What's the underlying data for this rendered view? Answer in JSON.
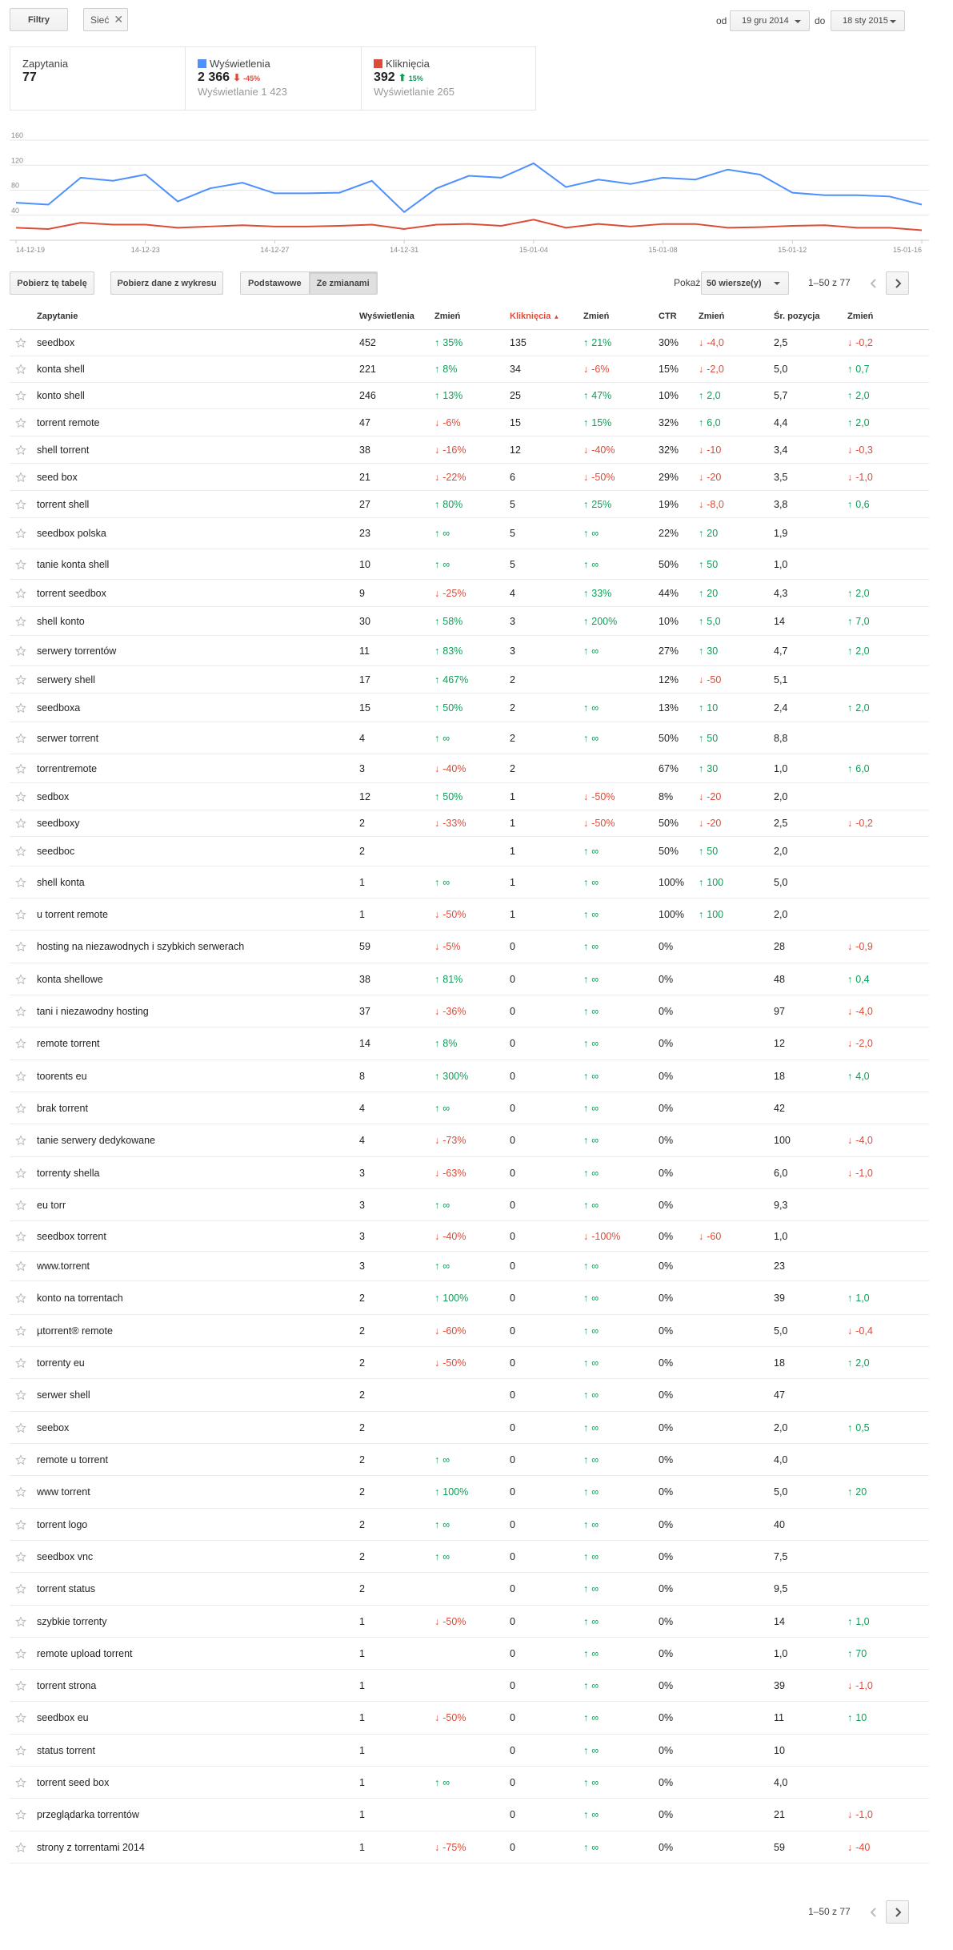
{
  "toolbar": {
    "filters_label": "Filtry",
    "chip_label": "Sieć",
    "from_label": "od",
    "from_date": "19 gru 2014",
    "to_label": "do",
    "to_date": "18 sty 2015"
  },
  "summary": {
    "queries_label": "Zapytania",
    "queries_value": "77",
    "impressions_label": "Wyświetlenia",
    "impressions_value": "2 366",
    "impressions_change": "-45%",
    "impressions_prev": "Wyświetlanie 1 423",
    "clicks_label": "Kliknięcia",
    "clicks_value": "392",
    "clicks_change": "15%",
    "clicks_prev": "Wyświetlanie 265"
  },
  "chart_data": {
    "type": "line",
    "title": "",
    "x": [
      "14-12-19",
      "14-12-20",
      "14-12-21",
      "14-12-22",
      "14-12-23",
      "14-12-24",
      "14-12-25",
      "14-12-26",
      "14-12-27",
      "14-12-28",
      "14-12-29",
      "14-12-30",
      "14-12-31",
      "15-01-01",
      "15-01-02",
      "15-01-03",
      "15-01-04",
      "15-01-05",
      "15-01-06",
      "15-01-07",
      "15-01-08",
      "15-01-09",
      "15-01-10",
      "15-01-11",
      "15-01-12",
      "15-01-13",
      "15-01-14",
      "15-01-15",
      "15-01-16"
    ],
    "x_tick_labels": [
      "14-12-19",
      "14-12-23",
      "14-12-27",
      "14-12-31",
      "15-01-04",
      "15-01-08",
      "15-01-12",
      "15-01-16"
    ],
    "y_ticks": [
      "160",
      "120",
      "80",
      "40"
    ],
    "ylim": [
      0,
      160
    ],
    "series": [
      {
        "name": "Wyświetlenia",
        "color": "#4d90fe",
        "values": [
          60,
          57,
          100,
          95,
          105,
          62,
          83,
          92,
          75,
          75,
          76,
          95,
          45,
          83,
          103,
          100,
          123,
          85,
          97,
          90,
          100,
          97,
          113,
          105,
          76,
          72,
          72,
          70,
          57
        ]
      },
      {
        "name": "Kliknięcia",
        "color": "#dd4b39",
        "values": [
          20,
          18,
          28,
          25,
          25,
          20,
          22,
          24,
          22,
          22,
          23,
          25,
          18,
          25,
          26,
          23,
          33,
          20,
          26,
          22,
          26,
          26,
          20,
          21,
          23,
          24,
          20,
          20,
          16
        ]
      }
    ]
  },
  "actions": {
    "download_table": "Pobierz tę tabelę",
    "download_chart": "Pobierz dane z wykresu",
    "basic": "Podstawowe",
    "with_changes": "Ze zmianami",
    "show_label": "Pokaż",
    "rows_select": "50 wiersze(y)",
    "range_top": "1–50 z 77",
    "range_bottom": "1–50 z 77"
  },
  "table": {
    "headers": [
      "Zapytanie",
      "Wyświetlenia",
      "Zmień",
      "Kliknięcia",
      "Zmień",
      "CTR",
      "Zmień",
      "Śr. pozycja",
      "Zmień"
    ],
    "sort_indicator": "▲",
    "colors": {
      "down": "#dd4b39",
      "up": "#0f9d58",
      "sorted": "#dd4b39"
    },
    "rows": [
      [
        "seedbox",
        "452",
        "+35%",
        "135",
        "+21%",
        "30%",
        "-4,0",
        "2,5",
        "-0,2"
      ],
      [
        "konta shell",
        "221",
        "+8%",
        "34",
        "-6%",
        "15%",
        "-2,0",
        "5,0",
        "+0,7"
      ],
      [
        "konto shell",
        "246",
        "+13%",
        "25",
        "+47%",
        "10%",
        "+2,0",
        "5,7",
        "+2,0"
      ],
      [
        "torrent remote",
        "47",
        "-6%",
        "15",
        "+15%",
        "32%",
        "+6,0",
        "4,4",
        "+2,0"
      ],
      [
        "shell torrent",
        "38",
        "-16%",
        "12",
        "-40%",
        "32%",
        "-10",
        "3,4",
        "-0,3"
      ],
      [
        "seed box",
        "21",
        "-22%",
        "6",
        "-50%",
        "29%",
        "-20",
        "3,5",
        "-1,0"
      ],
      [
        "torrent shell",
        "27",
        "+80%",
        "5",
        "+25%",
        "19%",
        "-8,0",
        "3,8",
        "+0,6"
      ],
      [
        "seedbox polska",
        "23",
        "+∞",
        "5",
        "+∞",
        "22%",
        "+20",
        "1,9",
        ""
      ],
      [
        "tanie konta shell",
        "10",
        "+∞",
        "5",
        "+∞",
        "50%",
        "+50",
        "1,0",
        ""
      ],
      [
        "torrent seedbox",
        "9",
        "-25%",
        "4",
        "+33%",
        "44%",
        "+20",
        "4,3",
        "+2,0"
      ],
      [
        "shell konto",
        "30",
        "+58%",
        "3",
        "+200%",
        "10%",
        "+5,0",
        "14",
        "+7,0"
      ],
      [
        "serwery torrentów",
        "11",
        "+83%",
        "3",
        "+∞",
        "27%",
        "+30",
        "4,7",
        "+2,0"
      ],
      [
        "serwery shell",
        "17",
        "+467%",
        "2",
        "",
        "12%",
        "-50",
        "5,1",
        ""
      ],
      [
        "seedboxa",
        "15",
        "+50%",
        "2",
        "+∞",
        "13%",
        "+10",
        "2,4",
        "+2,0"
      ],
      [
        "serwer torrent",
        "4",
        "+∞",
        "2",
        "+∞",
        "50%",
        "+50",
        "8,8",
        ""
      ],
      [
        "torrentremote",
        "3",
        "-40%",
        "2",
        "",
        "67%",
        "+30",
        "1,0",
        "+6,0"
      ],
      [
        "sedbox",
        "12",
        "+50%",
        "1",
        "-50%",
        "8%",
        "-20",
        "2,0",
        ""
      ],
      [
        "seedboxy",
        "2",
        "-33%",
        "1",
        "-50%",
        "50%",
        "-20",
        "2,5",
        "-0,2"
      ],
      [
        "seedboc",
        "2",
        "",
        "1",
        "+∞",
        "50%",
        "+50",
        "2,0",
        ""
      ],
      [
        "shell konta",
        "1",
        "+∞",
        "1",
        "+∞",
        "100%",
        "+100",
        "5,0",
        ""
      ],
      [
        "u torrent remote",
        "1",
        "-50%",
        "1",
        "+∞",
        "100%",
        "+100",
        "2,0",
        ""
      ],
      [
        "hosting na niezawodnych i szybkich serwerach",
        "59",
        "-5%",
        "0",
        "+∞",
        "0%",
        "",
        "28",
        "-0,9"
      ],
      [
        "konta shellowe",
        "38",
        "+81%",
        "0",
        "+∞",
        "0%",
        "",
        "48",
        "+0,4"
      ],
      [
        "tani i niezawodny hosting",
        "37",
        "-36%",
        "0",
        "+∞",
        "0%",
        "",
        "97",
        "-4,0"
      ],
      [
        "remote torrent",
        "14",
        "+8%",
        "0",
        "+∞",
        "0%",
        "",
        "12",
        "-2,0"
      ],
      [
        "toorents eu",
        "8",
        "+300%",
        "0",
        "+∞",
        "0%",
        "",
        "18",
        "+4,0"
      ],
      [
        "brak torrent",
        "4",
        "+∞",
        "0",
        "+∞",
        "0%",
        "",
        "42",
        ""
      ],
      [
        "tanie serwery dedykowane",
        "4",
        "-73%",
        "0",
        "+∞",
        "0%",
        "",
        "100",
        "-4,0"
      ],
      [
        "torrenty shella",
        "3",
        "-63%",
        "0",
        "+∞",
        "0%",
        "",
        "6,0",
        "-1,0"
      ],
      [
        "eu torr",
        "3",
        "+∞",
        "0",
        "+∞",
        "0%",
        "",
        "9,3",
        ""
      ],
      [
        "seedbox torrent",
        "3",
        "-40%",
        "0",
        "-100%",
        "0%",
        "-60",
        "1,0",
        ""
      ],
      [
        "www.torrent",
        "3",
        "+∞",
        "0",
        "+∞",
        "0%",
        "",
        "23",
        ""
      ],
      [
        "konto na torrentach",
        "2",
        "+100%",
        "0",
        "+∞",
        "0%",
        "",
        "39",
        "+1,0"
      ],
      [
        "µtorrent® remote",
        "2",
        "-60%",
        "0",
        "+∞",
        "0%",
        "",
        "5,0",
        "-0,4"
      ],
      [
        "torrenty eu",
        "2",
        "-50%",
        "0",
        "+∞",
        "0%",
        "",
        "18",
        "+2,0"
      ],
      [
        "serwer shell",
        "2",
        "",
        "0",
        "+∞",
        "0%",
        "",
        "47",
        ""
      ],
      [
        "seebox",
        "2",
        "",
        "0",
        "+∞",
        "0%",
        "",
        "2,0",
        "+0,5"
      ],
      [
        "remote u torrent",
        "2",
        "+∞",
        "0",
        "+∞",
        "0%",
        "",
        "4,0",
        ""
      ],
      [
        "www torrent",
        "2",
        "+100%",
        "0",
        "+∞",
        "0%",
        "",
        "5,0",
        "+20"
      ],
      [
        "torrent logo",
        "2",
        "+∞",
        "0",
        "+∞",
        "0%",
        "",
        "40",
        ""
      ],
      [
        "seedbox vnc",
        "2",
        "+∞",
        "0",
        "+∞",
        "0%",
        "",
        "7,5",
        ""
      ],
      [
        "torrent status",
        "2",
        "",
        "0",
        "+∞",
        "0%",
        "",
        "9,5",
        ""
      ],
      [
        "szybkie torrenty",
        "1",
        "-50%",
        "0",
        "+∞",
        "0%",
        "",
        "14",
        "+1,0"
      ],
      [
        "remote upload torrent",
        "1",
        "",
        "0",
        "+∞",
        "0%",
        "",
        "1,0",
        "+70"
      ],
      [
        "torrent strona",
        "1",
        "",
        "0",
        "+∞",
        "0%",
        "",
        "39",
        "-1,0"
      ],
      [
        "seedbox eu",
        "1",
        "-50%",
        "0",
        "+∞",
        "0%",
        "",
        "11",
        "+10"
      ],
      [
        "status torrent",
        "1",
        "",
        "0",
        "+∞",
        "0%",
        "",
        "10",
        ""
      ],
      [
        "torrent seed box",
        "1",
        "+∞",
        "0",
        "+∞",
        "0%",
        "",
        "4,0",
        ""
      ],
      [
        "przeglądarka torrentów",
        "1",
        "",
        "0",
        "+∞",
        "0%",
        "",
        "21",
        "-1,0"
      ],
      [
        "strony z torrentami 2014",
        "1",
        "-75%",
        "0",
        "+∞",
        "0%",
        "",
        "59",
        "-40"
      ]
    ]
  }
}
